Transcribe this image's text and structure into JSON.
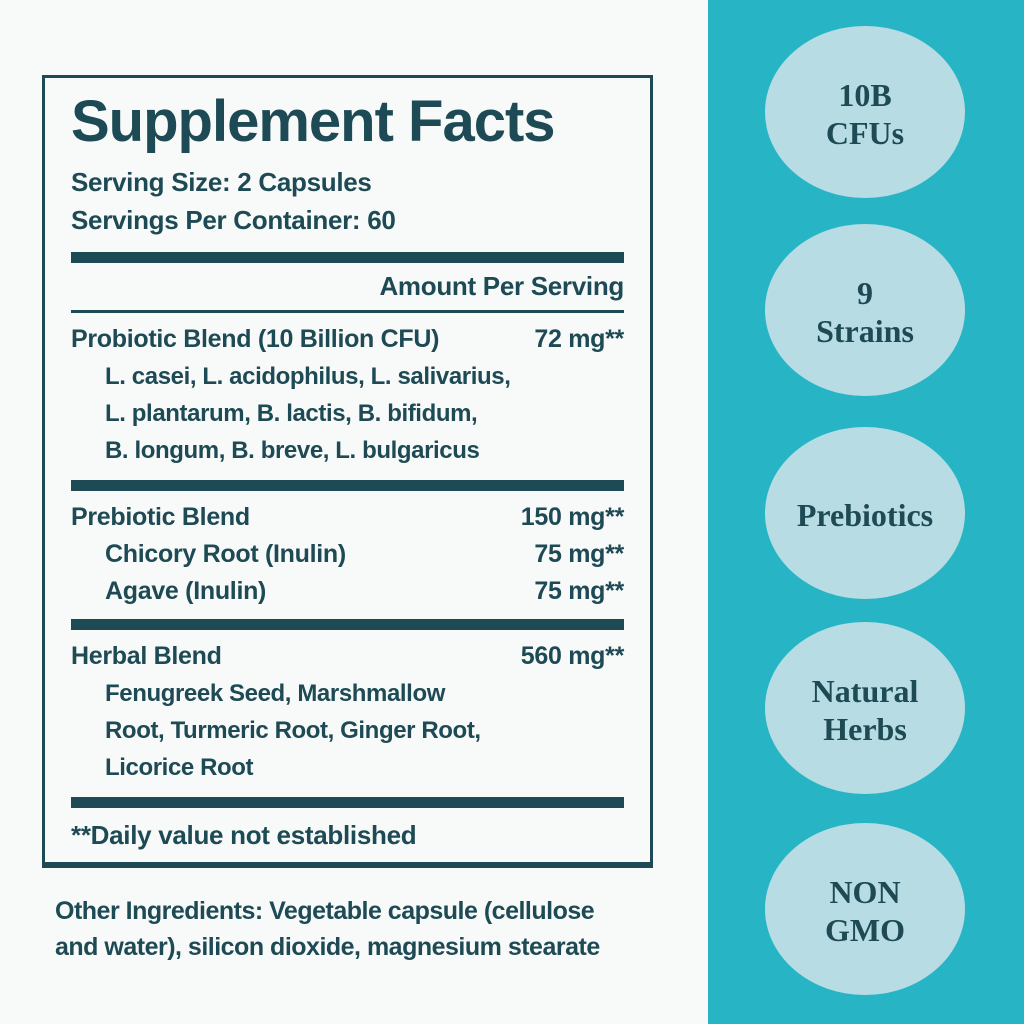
{
  "colors": {
    "page_bg": "#f8faf9",
    "ink": "#1d4a54",
    "band": "#27b5c5",
    "badge_fill": "#b7dce4"
  },
  "label": {
    "title": "Supplement Facts",
    "serving_size": "Serving Size: 2 Capsules",
    "servings_per_container": "Servings Per Container: 60",
    "amount_header": "Amount Per Serving",
    "sections": [
      {
        "name": "Probiotic Blend (10 Billion CFU)",
        "amount": "72 mg**",
        "sub_text": "L. casei, L. acidophilus, L. salivarius,\nL. plantarum, B. lactis, B. bifidum,\nB. longum, B. breve, L. bulgaricus"
      },
      {
        "name": "Prebiotic Blend",
        "amount": "150 mg**",
        "sub_items": [
          {
            "name": "Chicory Root (Inulin)",
            "amount": "75 mg**"
          },
          {
            "name": "Agave (Inulin)",
            "amount": "75 mg**"
          }
        ]
      },
      {
        "name": "Herbal Blend",
        "amount": "560 mg**",
        "sub_text": "Fenugreek Seed, Marshmallow\nRoot, Turmeric Root, Ginger Root,\nLicorice Root"
      }
    ],
    "footnote": "**Daily value not established"
  },
  "other_ingredients": "Other Ingredients: Vegetable capsule (cellulose\nand water), silicon dioxide, magnesium stearate",
  "badges": [
    {
      "text": "10B\nCFUs"
    },
    {
      "text": "9\nStrains"
    },
    {
      "text": "Prebiotics"
    },
    {
      "text": "Natural\nHerbs"
    },
    {
      "text": "NON\nGMO"
    }
  ]
}
